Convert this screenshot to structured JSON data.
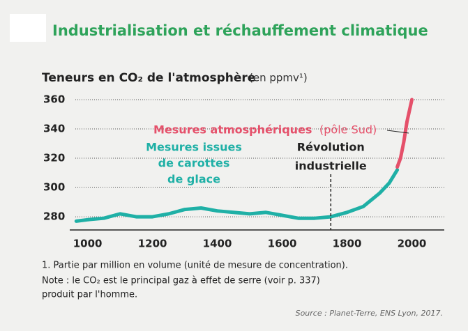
{
  "chart_data": {
    "type": "line",
    "title": "Industrialisation et réchauffement climatique",
    "subtitle": "Teneurs en CO₂ de l'atmosphère",
    "subtitle_unit": "(en ppmv¹)",
    "xlim": [
      960,
      2100
    ],
    "ylim": [
      271,
      360
    ],
    "xticks": [
      1000,
      1200,
      1400,
      1600,
      1800,
      2000
    ],
    "yticks": [
      280,
      300,
      320,
      340,
      360
    ],
    "grid": true,
    "series": [
      {
        "name": [
          "Mesures issues",
          "de carottes",
          "de glace"
        ],
        "color": "#1fb0a6",
        "x": [
          965,
          1000,
          1050,
          1100,
          1150,
          1200,
          1250,
          1300,
          1350,
          1400,
          1450,
          1500,
          1550,
          1600,
          1650,
          1700,
          1750,
          1800,
          1850,
          1900,
          1930,
          1955
        ],
        "values": [
          277,
          278,
          279,
          282,
          280,
          280,
          282,
          285,
          286,
          284,
          283,
          282,
          283,
          281,
          279,
          279,
          280,
          283,
          287,
          296,
          303,
          312
        ]
      },
      {
        "name": [
          "Mesures atmosphériques",
          "(pôle Sud)"
        ],
        "color": "#e5506a",
        "x": [
          1955,
          1965,
          1975,
          1985,
          1995,
          2000
        ],
        "values": [
          314,
          320,
          331,
          345,
          355,
          360
        ]
      }
    ],
    "event": {
      "label": [
        "Révolution",
        "industrielle"
      ],
      "x": 1750
    },
    "notes": [
      "1. Partie par million en volume (unité de mesure de concentration).",
      "Note : le CO₂ est le principal gaz à effet de serre (voir p. 337)",
      "produit par l'homme."
    ],
    "source": "Source : Planet-Terre, ENS Lyon, 2017."
  }
}
